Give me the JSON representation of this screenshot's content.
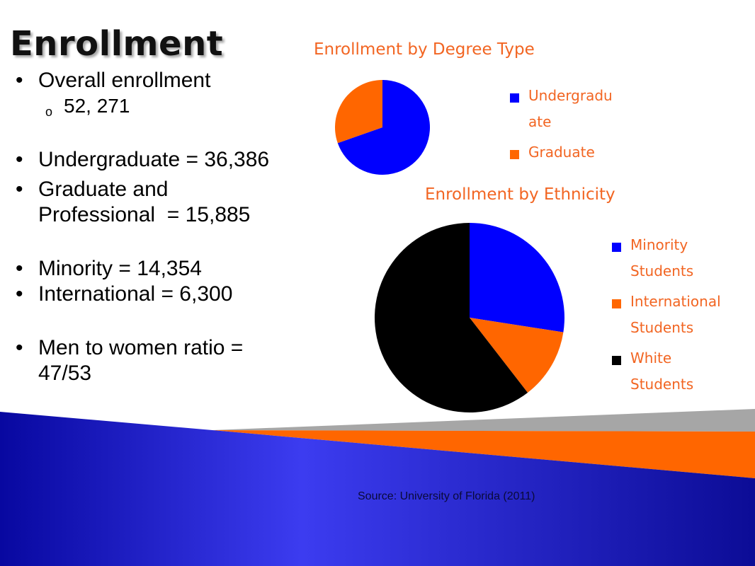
{
  "slide": {
    "title": "Enrollment"
  },
  "stats": {
    "bullet_glyph": "•",
    "sub_glyph": "o",
    "overall_label": "Overall enrollment",
    "overall_value": "52, 271",
    "undergraduate": "Undergraduate = 36,386",
    "graduate_line1": "Graduate and",
    "graduate_line2": "Professional  = 15,885",
    "minority": "Minority = 14,354",
    "international": "International = 6,300",
    "ratio_line1": "Men to women ratio =",
    "ratio_line2": "47/53"
  },
  "chart_data": [
    {
      "type": "pie",
      "title": "Enrollment by Degree Type",
      "series": [
        {
          "label_line1": "Undergradu",
          "label_line2": "ate",
          "value": 36386,
          "color": "#0000ff"
        },
        {
          "label_line1": "Graduate",
          "label_line2": "",
          "value": 15885,
          "color": "#ff6600"
        }
      ],
      "legend_position": "right"
    },
    {
      "type": "pie",
      "title": "Enrollment by Ethnicity",
      "series": [
        {
          "label_line1": "Minority",
          "label_line2": "Students",
          "value": 14354,
          "color": "#0000ff"
        },
        {
          "label_line1": "International",
          "label_line2": "Students",
          "value": 6300,
          "color": "#ff6600"
        },
        {
          "label_line1": "White",
          "label_line2": "Students",
          "value": 31617,
          "color": "#000000"
        }
      ],
      "legend_position": "right"
    }
  ],
  "source": "Source: University of Florida (2011)",
  "theme": {
    "blue": "#2a2ad6",
    "orange": "#ff6600",
    "gray": "#a6a6a6"
  }
}
